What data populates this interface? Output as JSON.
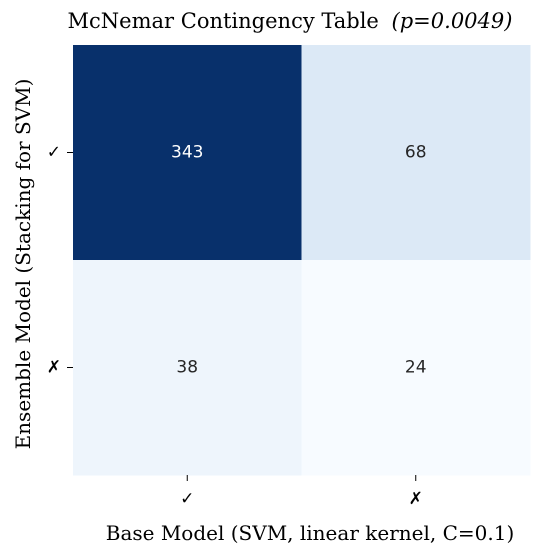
{
  "chart_data": {
    "type": "heatmap",
    "title": "McNemar Contingency Table",
    "title_annotation": "(p=0.0049)",
    "xlabel": "Base Model (SVM, linear kernel, C=0.1)",
    "ylabel": "Ensemble Model (Stacking for SVM)",
    "x_categories": [
      "✓",
      "✗"
    ],
    "y_categories": [
      "✓",
      "✗"
    ],
    "values": [
      [
        343,
        68
      ],
      [
        38,
        24
      ]
    ],
    "colormap": "Blues",
    "colors": {
      "high": "#08306b",
      "low": "#f7fbff",
      "light_text": "#ffffff",
      "dark_text": "#262626"
    },
    "colorbar": false,
    "grid": false
  }
}
